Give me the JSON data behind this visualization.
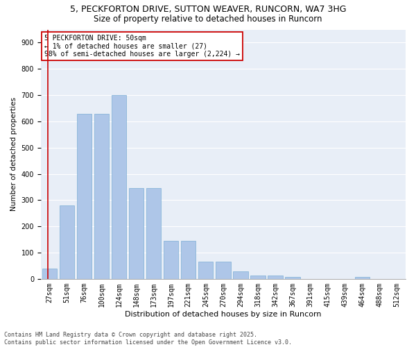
{
  "title1": "5, PECKFORTON DRIVE, SUTTON WEAVER, RUNCORN, WA7 3HG",
  "title2": "Size of property relative to detached houses in Runcorn",
  "xlabel": "Distribution of detached houses by size in Runcorn",
  "ylabel": "Number of detached properties",
  "categories": [
    "27sqm",
    "51sqm",
    "76sqm",
    "100sqm",
    "124sqm",
    "148sqm",
    "173sqm",
    "197sqm",
    "221sqm",
    "245sqm",
    "270sqm",
    "294sqm",
    "318sqm",
    "342sqm",
    "367sqm",
    "391sqm",
    "415sqm",
    "439sqm",
    "464sqm",
    "488sqm",
    "512sqm"
  ],
  "values": [
    40,
    280,
    630,
    630,
    700,
    345,
    345,
    145,
    145,
    65,
    65,
    28,
    12,
    12,
    8,
    0,
    0,
    0,
    8,
    0,
    0
  ],
  "bar_color": "#aec6e8",
  "bar_edge_color": "#7bafd4",
  "highlight_color": "#cc0000",
  "annotation_text": "5 PECKFORTON DRIVE: 50sqm\n← 1% of detached houses are smaller (27)\n98% of semi-detached houses are larger (2,224) →",
  "ylim": [
    0,
    950
  ],
  "yticks": [
    0,
    100,
    200,
    300,
    400,
    500,
    600,
    700,
    800,
    900
  ],
  "bg_color": "#e8eef7",
  "footnote": "Contains HM Land Registry data © Crown copyright and database right 2025.\nContains public sector information licensed under the Open Government Licence v3.0.",
  "title1_fontsize": 9,
  "title2_fontsize": 8.5,
  "xlabel_fontsize": 8,
  "ylabel_fontsize": 7.5,
  "tick_fontsize": 7,
  "footnote_fontsize": 6
}
